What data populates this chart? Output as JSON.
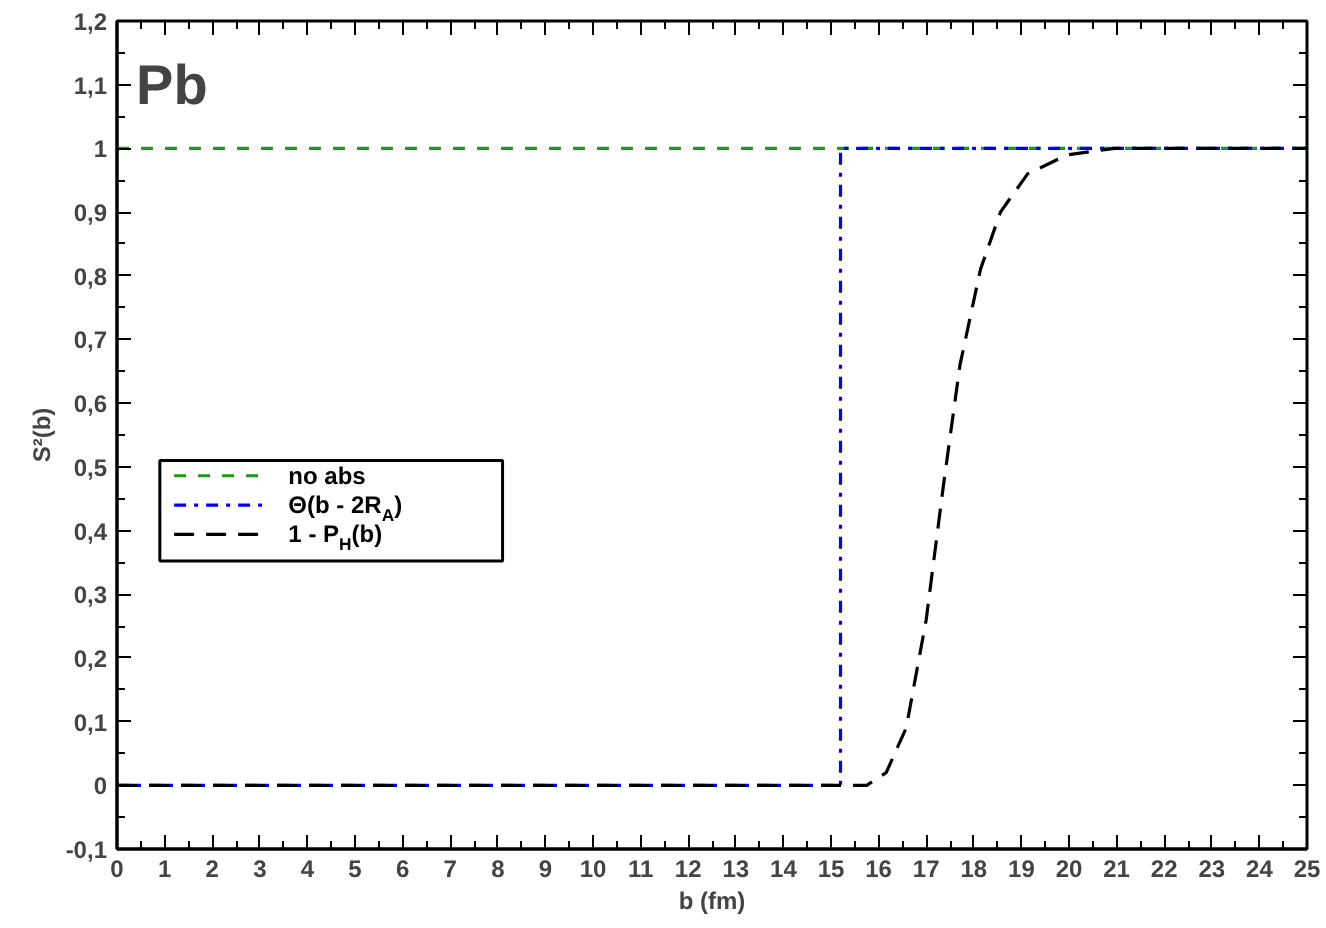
{
  "chart_data": {
    "type": "line",
    "title": "Pb",
    "xlabel": "b (fm)",
    "ylabel": "S²(b)",
    "xlim": [
      0,
      25
    ],
    "ylim": [
      -0.1,
      1.2
    ],
    "xticks": [
      0,
      1,
      2,
      3,
      4,
      5,
      6,
      7,
      8,
      9,
      10,
      11,
      12,
      13,
      14,
      15,
      16,
      17,
      18,
      19,
      20,
      21,
      22,
      23,
      24,
      25
    ],
    "yticks": [
      {
        "value": -0.1,
        "label": "-0,1"
      },
      0,
      {
        "value": 0.1,
        "label": "0,1"
      },
      {
        "value": 0.2,
        "label": "0,2"
      },
      {
        "value": 0.3,
        "label": "0,3"
      },
      {
        "value": 0.4,
        "label": "0,4"
      },
      {
        "value": 0.5,
        "label": "0,5"
      },
      {
        "value": 0.6,
        "label": "0,6"
      },
      {
        "value": 0.7,
        "label": "0,7"
      },
      {
        "value": 0.8,
        "label": "0,8"
      },
      {
        "value": 0.9,
        "label": "0,9"
      },
      1,
      {
        "value": 1.1,
        "label": "1,1"
      },
      {
        "value": 1.2,
        "label": "1,2"
      }
    ],
    "grid": false,
    "legend": "left",
    "series": [
      {
        "name": "no abs",
        "color": "#1a9a1a",
        "line_style": "dashed",
        "x": [
          0,
          25
        ],
        "values": [
          1,
          1
        ]
      },
      {
        "name": "Θ(b - 2R$_{A}$)",
        "color": "#0000ff",
        "line_style": "dashdot",
        "x": [
          0,
          15.2,
          15.2,
          25
        ],
        "values": [
          0,
          0,
          1,
          1
        ]
      },
      {
        "name": "1 - P$_{H}$(b)",
        "color": "#000000",
        "line_style": "dashed",
        "x": [
          0,
          15.75,
          16.16,
          16.58,
          17.0,
          17.36,
          17.71,
          18.14,
          18.56,
          19.13,
          19.97,
          20.96,
          25
        ],
        "values": [
          0,
          0,
          0.02,
          0.09,
          0.26,
          0.47,
          0.66,
          0.81,
          0.9,
          0.96,
          0.99,
          1,
          1
        ]
      }
    ]
  }
}
